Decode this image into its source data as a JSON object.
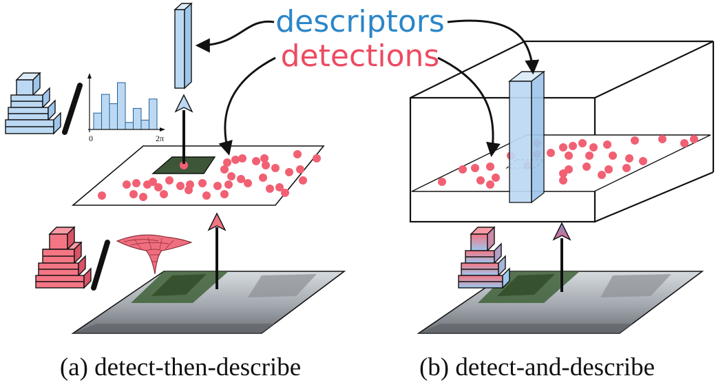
{
  "labels": {
    "descriptors": "descriptors",
    "detections": "detections"
  },
  "captions": {
    "a": "(a) detect-then-describe",
    "b": "(b) detect-and-describe"
  },
  "histogram": {
    "tick_start": "0",
    "tick_end": "2π",
    "bar_values": [
      0.35,
      0.75,
      0.55,
      1.0,
      0.15,
      0.45,
      0.2,
      0.65
    ]
  },
  "colors": {
    "descriptor_blue": "#2b86c8",
    "detection_red": "#ee4a62",
    "blue_fill": "#bcd9f4",
    "red_fill": "#f47684",
    "dot_red": "#f16073"
  },
  "icons": [
    "cnn-descriptor-icon",
    "cnn-detector-icon",
    "cnn-joint-icon",
    "mexican-hat-icon"
  ]
}
